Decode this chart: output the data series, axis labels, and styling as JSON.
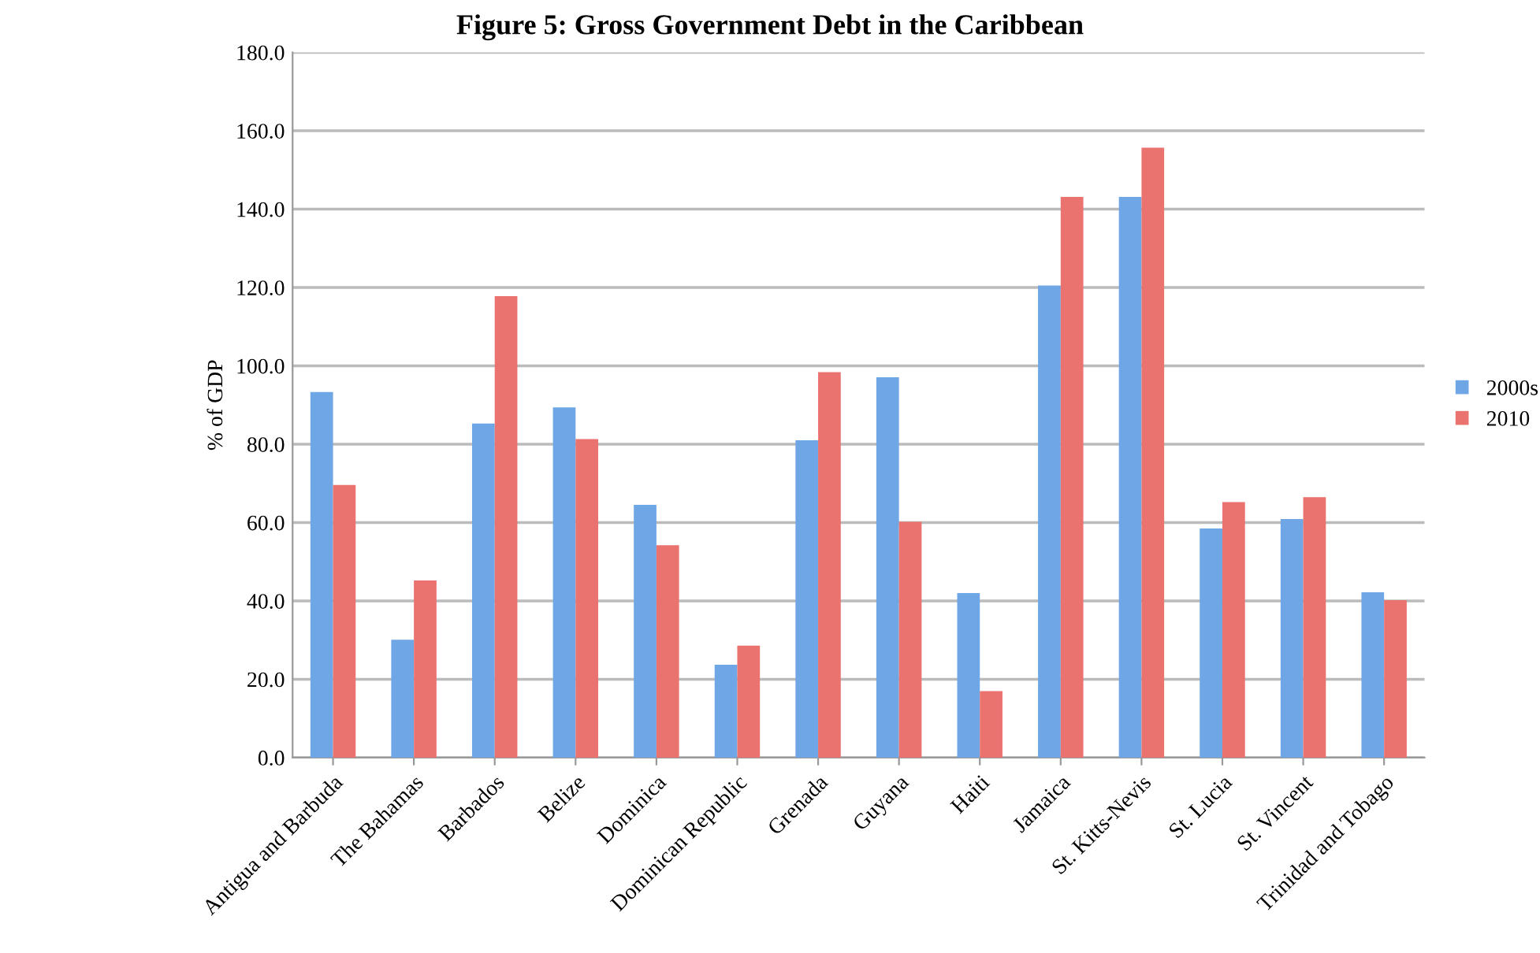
{
  "chart_data": {
    "type": "bar",
    "title": "Figure 5: Gross Government Debt in the Caribbean",
    "ylabel": "% of GDP",
    "categories": [
      "Antigua and Barbuda",
      "The Bahamas",
      "Barbados",
      "Belize",
      "Dominica",
      "Dominican Republic",
      "Grenada",
      "Guyana",
      "Haiti",
      "Jamaica",
      "St. Kitts-Nevis",
      "St. Lucia",
      "St. Vincent",
      "Trinidad and Tobago"
    ],
    "series": [
      {
        "name": "2000s",
        "color": "#6ea6e6",
        "values": [
          93.3,
          30.1,
          85.3,
          89.4,
          64.5,
          23.7,
          81.0,
          97.1,
          42.0,
          120.5,
          143.1,
          58.5,
          60.9,
          42.2
        ]
      },
      {
        "name": "2010",
        "color": "#ea7370",
        "values": [
          69.6,
          45.2,
          117.8,
          81.3,
          54.2,
          28.6,
          98.4,
          60.2,
          17.0,
          143.1,
          155.7,
          65.2,
          66.5,
          40.2
        ]
      }
    ],
    "ylim": [
      0,
      180
    ],
    "yticks": [
      {
        "value": 0,
        "label": "0.0"
      },
      {
        "value": 20,
        "label": "20.0"
      },
      {
        "value": 40,
        "label": "40.0"
      },
      {
        "value": 60,
        "label": "60.0"
      },
      {
        "value": 80,
        "label": "80.0"
      },
      {
        "value": 100,
        "label": "100.0"
      },
      {
        "value": 120,
        "label": "120.0"
      },
      {
        "value": 140,
        "label": "140.0"
      },
      {
        "value": 160,
        "label": "160.0"
      },
      {
        "value": 180,
        "label": "180.0"
      }
    ],
    "grid": "y",
    "legend": "right"
  }
}
